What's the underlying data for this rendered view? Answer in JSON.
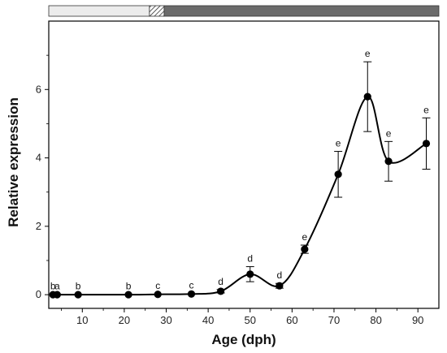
{
  "chart_data": {
    "type": "line",
    "xlabel": "Age (dph)",
    "ylabel": "Relative expression",
    "xlim": [
      2,
      95
    ],
    "ylim": [
      -0.4,
      8.0
    ],
    "xticks": [
      10,
      20,
      30,
      40,
      50,
      60,
      70,
      80,
      90
    ],
    "yticks": [
      0,
      2,
      4,
      6
    ],
    "grid": false,
    "series": [
      {
        "points": [
          {
            "x": 3,
            "y": 0.0,
            "err": 0.02,
            "label": "b"
          },
          {
            "x": 4,
            "y": 0.0,
            "err": 0.02,
            "label": "a"
          },
          {
            "x": 9,
            "y": 0.0,
            "err": 0.02,
            "label": "b"
          },
          {
            "x": 21,
            "y": 0.0,
            "err": 0.02,
            "label": "b"
          },
          {
            "x": 28,
            "y": 0.01,
            "err": 0.02,
            "label": "c"
          },
          {
            "x": 36,
            "y": 0.02,
            "err": 0.02,
            "label": "c"
          },
          {
            "x": 43,
            "y": 0.1,
            "err": 0.05,
            "label": "d"
          },
          {
            "x": 50,
            "y": 0.6,
            "err": 0.22,
            "label": "d"
          },
          {
            "x": 57,
            "y": 0.26,
            "err": 0.07,
            "label": "d"
          },
          {
            "x": 63,
            "y": 1.33,
            "err": 0.12,
            "label": "e"
          },
          {
            "x": 71,
            "y": 3.52,
            "err": 0.67,
            "label": "e"
          },
          {
            "x": 78,
            "y": 5.79,
            "err": 1.02,
            "label": "e"
          },
          {
            "x": 83,
            "y": 3.9,
            "err": 0.58,
            "label": "e"
          },
          {
            "x": 92,
            "y": 4.42,
            "err": 0.75,
            "label": "e"
          }
        ]
      }
    ],
    "stage_bar": [
      {
        "from": 2,
        "to": 26,
        "color": "#ececec",
        "pattern": "solid"
      },
      {
        "from": 26,
        "to": 29.5,
        "color": "#ffffff",
        "pattern": "hatched"
      },
      {
        "from": 29.5,
        "to": 95,
        "color": "#6b6b6b",
        "pattern": "solid"
      }
    ],
    "colors": {
      "line": "#000000",
      "marker": "#000000"
    }
  }
}
